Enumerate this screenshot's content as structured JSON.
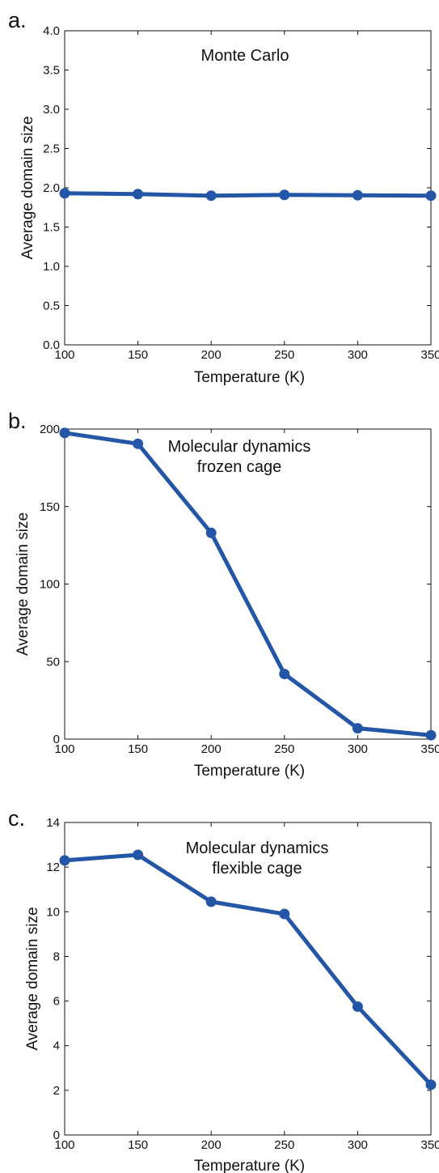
{
  "colors": {
    "series": "#2356a6",
    "axis": "#111111"
  },
  "chart_data": [
    {
      "type": "line",
      "panel_label": "a.",
      "annotation": [
        "Monte Carlo"
      ],
      "xlabel": "Temperature (K)",
      "ylabel": "Average domain size",
      "x": [
        100,
        150,
        200,
        250,
        300,
        350
      ],
      "series": [
        {
          "values": [
            1.93,
            1.92,
            1.9,
            1.91,
            1.905,
            1.9
          ]
        }
      ],
      "xlim": [
        100,
        350
      ],
      "ylim": [
        0.0,
        4.0
      ],
      "xticks": [
        "100",
        "150",
        "200",
        "250",
        "300",
        "350"
      ],
      "yticks": [
        "0.0",
        "0.5",
        "1.0",
        "1.5",
        "2.0",
        "2.5",
        "3.0",
        "3.5",
        "4.0"
      ],
      "grid": false
    },
    {
      "type": "line",
      "panel_label": "b.",
      "annotation": [
        "Molecular dynamics",
        "frozen cage"
      ],
      "xlabel": "Temperature (K)",
      "ylabel": "Average domain size",
      "x": [
        100,
        150,
        200,
        250,
        300,
        350
      ],
      "series": [
        {
          "values": [
            197.5,
            190.5,
            133,
            42,
            7,
            2.5
          ]
        }
      ],
      "xlim": [
        100,
        350
      ],
      "ylim": [
        0,
        200
      ],
      "xticks": [
        "100",
        "150",
        "200",
        "250",
        "300",
        "350"
      ],
      "yticks": [
        "0",
        "50",
        "100",
        "150",
        "200"
      ],
      "grid": false
    },
    {
      "type": "line",
      "panel_label": "c.",
      "annotation": [
        "Molecular dynamics",
        "flexible cage"
      ],
      "xlabel": "Temperature (K)",
      "ylabel": "Average domain size",
      "x": [
        100,
        150,
        200,
        250,
        300,
        350
      ],
      "series": [
        {
          "values": [
            12.3,
            12.55,
            10.45,
            9.9,
            5.75,
            2.25
          ]
        }
      ],
      "xlim": [
        100,
        350
      ],
      "ylim": [
        0,
        14
      ],
      "xticks": [
        "100",
        "150",
        "200",
        "250",
        "300",
        "350"
      ],
      "yticks": [
        "0",
        "2",
        "4",
        "6",
        "8",
        "10",
        "12",
        "14"
      ],
      "grid": false
    }
  ]
}
